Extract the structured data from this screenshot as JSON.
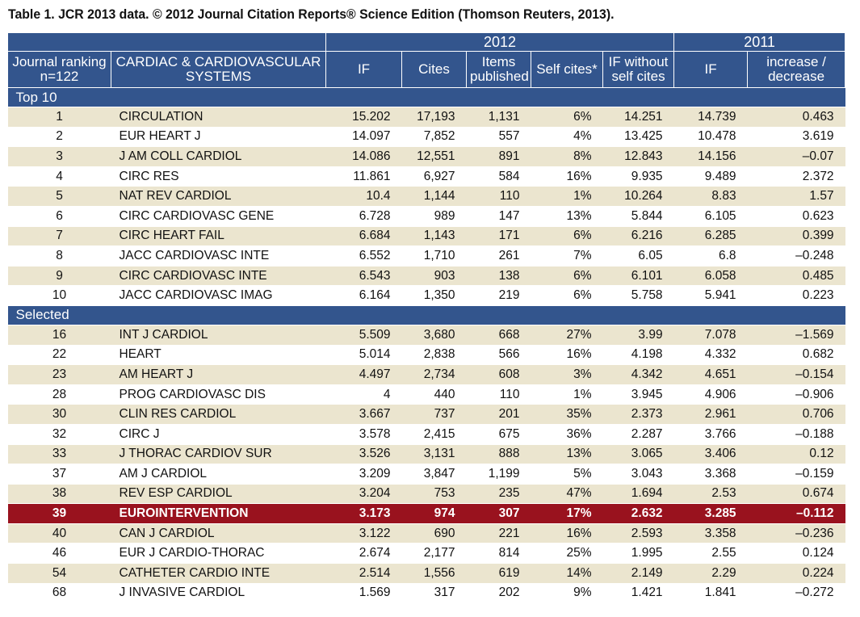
{
  "caption": "Table 1. JCR 2013 data. © 2012 Journal Citation Reports® Science Edition (Thomson Reuters, 2013).",
  "header": {
    "year_2012": "2012",
    "year_2011": "2011",
    "col_rank": "Journal ranking n=122",
    "col_name": "CARDIAC & CARDIOVASCULAR SYSTEMS",
    "col_if": "IF",
    "col_cites": "Cites",
    "col_items": "Items published",
    "col_self": "Self cites*",
    "col_ifwo": "IF without self cites",
    "col_if2011": "IF",
    "col_incdec": "increase / decrease"
  },
  "sections": [
    {
      "title": "Top 10",
      "rows": [
        {
          "rank": "1",
          "name": "CIRCULATION",
          "if": "15.202",
          "cites": "17,193",
          "items": "1,131",
          "self": "6%",
          "ifwo": "14.251",
          "if2011": "14.739",
          "change": "0.463"
        },
        {
          "rank": "2",
          "name": "EUR HEART J",
          "if": "14.097",
          "cites": "7,852",
          "items": "557",
          "self": "4%",
          "ifwo": "13.425",
          "if2011": "10.478",
          "change": "3.619"
        },
        {
          "rank": "3",
          "name": "J AM COLL CARDIOL",
          "if": "14.086",
          "cites": "12,551",
          "items": "891",
          "self": "8%",
          "ifwo": "12.843",
          "if2011": "14.156",
          "change": "–0.07"
        },
        {
          "rank": "4",
          "name": "CIRC RES",
          "if": "11.861",
          "cites": "6,927",
          "items": "584",
          "self": "16%",
          "ifwo": "9.935",
          "if2011": "9.489",
          "change": "2.372"
        },
        {
          "rank": "5",
          "name": "NAT REV CARDIOL",
          "if": "10.4",
          "cites": "1,144",
          "items": "110",
          "self": "1%",
          "ifwo": "10.264",
          "if2011": "8.83",
          "change": "1.57"
        },
        {
          "rank": "6",
          "name": "CIRC CARDIOVASC GENE",
          "if": "6.728",
          "cites": "989",
          "items": "147",
          "self": "13%",
          "ifwo": "5.844",
          "if2011": "6.105",
          "change": "0.623"
        },
        {
          "rank": "7",
          "name": "CIRC HEART FAIL",
          "if": "6.684",
          "cites": "1,143",
          "items": "171",
          "self": "6%",
          "ifwo": "6.216",
          "if2011": "6.285",
          "change": "0.399"
        },
        {
          "rank": "8",
          "name": "JACC CARDIOVASC INTE",
          "if": "6.552",
          "cites": "1,710",
          "items": "261",
          "self": "7%",
          "ifwo": "6.05",
          "if2011": "6.8",
          "change": "–0.248"
        },
        {
          "rank": "9",
          "name": "CIRC CARDIOVASC INTE",
          "if": "6.543",
          "cites": "903",
          "items": "138",
          "self": "6%",
          "ifwo": "6.101",
          "if2011": "6.058",
          "change": "0.485"
        },
        {
          "rank": "10",
          "name": "JACC CARDIOVASC IMAG",
          "if": "6.164",
          "cites": "1,350",
          "items": "219",
          "self": "6%",
          "ifwo": "5.758",
          "if2011": "5.941",
          "change": "0.223"
        }
      ]
    },
    {
      "title": "Selected",
      "rows": [
        {
          "rank": "16",
          "name": "INT J CARDIOL",
          "if": "5.509",
          "cites": "3,680",
          "items": "668",
          "self": "27%",
          "ifwo": "3.99",
          "if2011": "7.078",
          "change": "–1.569"
        },
        {
          "rank": "22",
          "name": "HEART",
          "if": "5.014",
          "cites": "2,838",
          "items": "566",
          "self": "16%",
          "ifwo": "4.198",
          "if2011": "4.332",
          "change": "0.682"
        },
        {
          "rank": "23",
          "name": "AM HEART J",
          "if": "4.497",
          "cites": "2,734",
          "items": "608",
          "self": "3%",
          "ifwo": "4.342",
          "if2011": "4.651",
          "change": "–0.154"
        },
        {
          "rank": "28",
          "name": "PROG CARDIOVASC DIS",
          "if": "4",
          "cites": "440",
          "items": "110",
          "self": "1%",
          "ifwo": "3.945",
          "if2011": "4.906",
          "change": "–0.906"
        },
        {
          "rank": "30",
          "name": "CLIN RES CARDIOL",
          "if": "3.667",
          "cites": "737",
          "items": "201",
          "self": "35%",
          "ifwo": "2.373",
          "if2011": "2.961",
          "change": "0.706"
        },
        {
          "rank": "32",
          "name": "CIRC J",
          "if": "3.578",
          "cites": "2,415",
          "items": "675",
          "self": "36%",
          "ifwo": "2.287",
          "if2011": "3.766",
          "change": "–0.188"
        },
        {
          "rank": "33",
          "name": "J THORAC CARDIOV SUR",
          "if": "3.526",
          "cites": "3,131",
          "items": "888",
          "self": "13%",
          "ifwo": "3.065",
          "if2011": "3.406",
          "change": "0.12"
        },
        {
          "rank": "37",
          "name": "AM J CARDIOL",
          "if": "3.209",
          "cites": "3,847",
          "items": "1,199",
          "self": "5%",
          "ifwo": "3.043",
          "if2011": "3.368",
          "change": "–0.159"
        },
        {
          "rank": "38",
          "name": "REV ESP CARDIOL",
          "if": "3.204",
          "cites": "753",
          "items": "235",
          "self": "47%",
          "ifwo": "1.694",
          "if2011": "2.53",
          "change": "0.674"
        },
        {
          "rank": "39",
          "name": "EUROINTERVENTION",
          "if": "3.173",
          "cites": "974",
          "items": "307",
          "self": "17%",
          "ifwo": "2.632",
          "if2011": "3.285",
          "change": "–0.112",
          "highlight": true
        },
        {
          "rank": "40",
          "name": "CAN J CARDIOL",
          "if": "3.122",
          "cites": "690",
          "items": "221",
          "self": "16%",
          "ifwo": "2.593",
          "if2011": "3.358",
          "change": "–0.236"
        },
        {
          "rank": "46",
          "name": "EUR J CARDIO-THORAC",
          "if": "2.674",
          "cites": "2,177",
          "items": "814",
          "self": "25%",
          "ifwo": "1.995",
          "if2011": "2.55",
          "change": "0.124"
        },
        {
          "rank": "54",
          "name": "CATHETER CARDIO INTE",
          "if": "2.514",
          "cites": "1,556",
          "items": "619",
          "self": "14%",
          "ifwo": "2.149",
          "if2011": "2.29",
          "change": "0.224"
        },
        {
          "rank": "68",
          "name": "J INVASIVE CARDIOL",
          "if": "1.569",
          "cites": "317",
          "items": "202",
          "self": "9%",
          "ifwo": "1.421",
          "if2011": "1.841",
          "change": "–0.272"
        }
      ]
    }
  ],
  "colors": {
    "header_bg": "#33558d",
    "row_alt_bg": "#ebe5cf",
    "highlight_bg": "#99121e"
  }
}
